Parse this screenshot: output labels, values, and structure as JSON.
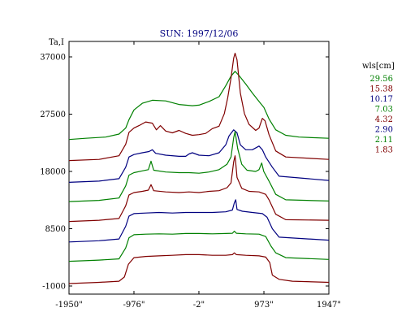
{
  "chart_data": {
    "type": "line",
    "title": "SUN: 1997/12/06",
    "ylabel": "Ta,I",
    "xlabel": "",
    "x_range": [
      -1950,
      1947
    ],
    "ylim": [
      -1000,
      37000
    ],
    "xticks": [
      {
        "value": -1950,
        "label": "-1950\""
      },
      {
        "value": -976,
        "label": "-976\""
      },
      {
        "value": -2,
        "label": "-2\""
      },
      {
        "value": 973,
        "label": "973\""
      },
      {
        "value": 1947,
        "label": "1947\""
      }
    ],
    "yticks": [
      {
        "value": 37000,
        "label": "37000"
      },
      {
        "value": 27500,
        "label": "27500"
      },
      {
        "value": 18000,
        "label": "18000"
      },
      {
        "value": 8500,
        "label": "8500"
      },
      {
        "value": -1000,
        "label": "-1000"
      }
    ],
    "legend": {
      "title": "wls[cm]",
      "placement": "right",
      "entries": [
        {
          "label": "29.56",
          "color": "#008000"
        },
        {
          "label": "15.38",
          "color": "#800000"
        },
        {
          "label": "10.17",
          "color": "#000080"
        },
        {
          "label": "7.03",
          "color": "#008000"
        },
        {
          "label": "4.32",
          "color": "#800000"
        },
        {
          "label": "2.90",
          "color": "#000080"
        },
        {
          "label": "2.11",
          "color": "#008000"
        },
        {
          "label": "1.83",
          "color": "#800000"
        }
      ]
    },
    "series": [
      {
        "name": "29.56",
        "color": "#008000",
        "points": [
          [
            -1950,
            23300
          ],
          [
            -1700,
            23500
          ],
          [
            -1400,
            23700
          ],
          [
            -1200,
            24200
          ],
          [
            -1100,
            25200
          ],
          [
            -1050,
            26600
          ],
          [
            -976,
            28200
          ],
          [
            -850,
            29300
          ],
          [
            -700,
            29800
          ],
          [
            -500,
            29700
          ],
          [
            -300,
            29100
          ],
          [
            -100,
            28900
          ],
          [
            0,
            29000
          ],
          [
            150,
            29600
          ],
          [
            300,
            30400
          ],
          [
            400,
            32200
          ],
          [
            480,
            33800
          ],
          [
            540,
            34600
          ],
          [
            600,
            33900
          ],
          [
            700,
            32500
          ],
          [
            800,
            31000
          ],
          [
            900,
            29600
          ],
          [
            973,
            28600
          ],
          [
            1050,
            26700
          ],
          [
            1150,
            24900
          ],
          [
            1300,
            24000
          ],
          [
            1500,
            23700
          ],
          [
            1947,
            23500
          ]
        ]
      },
      {
        "name": "15.38",
        "color": "#800000",
        "points": [
          [
            -1950,
            19800
          ],
          [
            -1500,
            20000
          ],
          [
            -1200,
            20600
          ],
          [
            -1100,
            22500
          ],
          [
            -1050,
            24500
          ],
          [
            -976,
            25200
          ],
          [
            -900,
            25600
          ],
          [
            -800,
            26200
          ],
          [
            -700,
            26000
          ],
          [
            -640,
            24900
          ],
          [
            -580,
            25600
          ],
          [
            -500,
            24700
          ],
          [
            -400,
            24400
          ],
          [
            -300,
            24800
          ],
          [
            -200,
            24300
          ],
          [
            -100,
            24000
          ],
          [
            0,
            24100
          ],
          [
            100,
            24300
          ],
          [
            200,
            25100
          ],
          [
            300,
            25500
          ],
          [
            380,
            27600
          ],
          [
            430,
            30200
          ],
          [
            480,
            33500
          ],
          [
            520,
            36800
          ],
          [
            540,
            37600
          ],
          [
            570,
            36500
          ],
          [
            620,
            31000
          ],
          [
            680,
            27600
          ],
          [
            750,
            25800
          ],
          [
            850,
            24800
          ],
          [
            900,
            25200
          ],
          [
            950,
            26800
          ],
          [
            990,
            26400
          ],
          [
            1050,
            24100
          ],
          [
            1150,
            21400
          ],
          [
            1300,
            20400
          ],
          [
            1947,
            20000
          ]
        ]
      },
      {
        "name": "10.17",
        "color": "#000080",
        "points": [
          [
            -1950,
            16200
          ],
          [
            -1500,
            16400
          ],
          [
            -1200,
            16800
          ],
          [
            -1100,
            18700
          ],
          [
            -1050,
            20400
          ],
          [
            -976,
            20800
          ],
          [
            -850,
            21100
          ],
          [
            -750,
            21300
          ],
          [
            -700,
            21600
          ],
          [
            -650,
            21000
          ],
          [
            -500,
            20700
          ],
          [
            -300,
            20500
          ],
          [
            -200,
            20500
          ],
          [
            -150,
            20900
          ],
          [
            -100,
            21100
          ],
          [
            0,
            20700
          ],
          [
            150,
            20600
          ],
          [
            300,
            21100
          ],
          [
            400,
            22400
          ],
          [
            450,
            23900
          ],
          [
            520,
            24900
          ],
          [
            570,
            24400
          ],
          [
            620,
            22400
          ],
          [
            700,
            21600
          ],
          [
            800,
            21600
          ],
          [
            900,
            22200
          ],
          [
            950,
            21600
          ],
          [
            1000,
            20400
          ],
          [
            1100,
            18700
          ],
          [
            1200,
            17200
          ],
          [
            1947,
            16500
          ]
        ]
      },
      {
        "name": "7.03",
        "color": "#008000",
        "points": [
          [
            -1950,
            13000
          ],
          [
            -1500,
            13200
          ],
          [
            -1200,
            13600
          ],
          [
            -1100,
            15600
          ],
          [
            -1050,
            17400
          ],
          [
            -976,
            17800
          ],
          [
            -850,
            18100
          ],
          [
            -760,
            18300
          ],
          [
            -720,
            19700
          ],
          [
            -680,
            18200
          ],
          [
            -500,
            17900
          ],
          [
            -300,
            17800
          ],
          [
            -150,
            17800
          ],
          [
            0,
            17700
          ],
          [
            150,
            17900
          ],
          [
            300,
            18300
          ],
          [
            420,
            19200
          ],
          [
            480,
            20400
          ],
          [
            520,
            23600
          ],
          [
            540,
            24600
          ],
          [
            580,
            21800
          ],
          [
            640,
            19200
          ],
          [
            720,
            18200
          ],
          [
            850,
            18000
          ],
          [
            900,
            18300
          ],
          [
            940,
            19400
          ],
          [
            970,
            18000
          ],
          [
            1050,
            16400
          ],
          [
            1150,
            14200
          ],
          [
            1300,
            13300
          ],
          [
            1947,
            13100
          ]
        ]
      },
      {
        "name": "4.32",
        "color": "#800000",
        "points": [
          [
            -1950,
            9700
          ],
          [
            -1500,
            9900
          ],
          [
            -1200,
            10200
          ],
          [
            -1100,
            12300
          ],
          [
            -1050,
            14100
          ],
          [
            -976,
            14500
          ],
          [
            -850,
            14700
          ],
          [
            -760,
            14900
          ],
          [
            -720,
            15800
          ],
          [
            -680,
            14800
          ],
          [
            -500,
            14600
          ],
          [
            -300,
            14500
          ],
          [
            -150,
            14600
          ],
          [
            0,
            14500
          ],
          [
            150,
            14700
          ],
          [
            300,
            14800
          ],
          [
            420,
            15300
          ],
          [
            480,
            16100
          ],
          [
            520,
            19600
          ],
          [
            540,
            20600
          ],
          [
            570,
            17000
          ],
          [
            640,
            15200
          ],
          [
            750,
            14700
          ],
          [
            900,
            14600
          ],
          [
            1000,
            14200
          ],
          [
            1050,
            13300
          ],
          [
            1150,
            10900
          ],
          [
            1300,
            10000
          ],
          [
            1947,
            9900
          ]
        ]
      },
      {
        "name": "2.90",
        "color": "#000080",
        "points": [
          [
            -1950,
            6300
          ],
          [
            -1500,
            6500
          ],
          [
            -1200,
            6800
          ],
          [
            -1100,
            8900
          ],
          [
            -1050,
            10600
          ],
          [
            -976,
            11000
          ],
          [
            -800,
            11100
          ],
          [
            -600,
            11200
          ],
          [
            -400,
            11100
          ],
          [
            -200,
            11200
          ],
          [
            0,
            11200
          ],
          [
            200,
            11200
          ],
          [
            400,
            11300
          ],
          [
            500,
            11600
          ],
          [
            530,
            12800
          ],
          [
            550,
            13300
          ],
          [
            570,
            11700
          ],
          [
            650,
            11400
          ],
          [
            800,
            11200
          ],
          [
            950,
            11000
          ],
          [
            1020,
            10400
          ],
          [
            1100,
            8500
          ],
          [
            1200,
            7100
          ],
          [
            1947,
            6600
          ]
        ]
      },
      {
        "name": "2.11",
        "color": "#008000",
        "points": [
          [
            -1950,
            3100
          ],
          [
            -1500,
            3300
          ],
          [
            -1200,
            3500
          ],
          [
            -1100,
            5300
          ],
          [
            -1050,
            7000
          ],
          [
            -976,
            7500
          ],
          [
            -800,
            7600
          ],
          [
            -600,
            7650
          ],
          [
            -400,
            7600
          ],
          [
            -200,
            7700
          ],
          [
            0,
            7700
          ],
          [
            200,
            7650
          ],
          [
            400,
            7700
          ],
          [
            500,
            7750
          ],
          [
            530,
            8100
          ],
          [
            560,
            7750
          ],
          [
            700,
            7650
          ],
          [
            900,
            7600
          ],
          [
            1000,
            7200
          ],
          [
            1080,
            5600
          ],
          [
            1150,
            4500
          ],
          [
            1300,
            3700
          ],
          [
            1947,
            3400
          ]
        ]
      },
      {
        "name": "1.83",
        "color": "#800000",
        "points": [
          [
            -1950,
            -600
          ],
          [
            -1500,
            -400
          ],
          [
            -1200,
            -200
          ],
          [
            -1120,
            500
          ],
          [
            -1060,
            2600
          ],
          [
            -976,
            3700
          ],
          [
            -800,
            3900
          ],
          [
            -600,
            4000
          ],
          [
            -400,
            4100
          ],
          [
            -200,
            4200
          ],
          [
            0,
            4200
          ],
          [
            200,
            4100
          ],
          [
            400,
            4100
          ],
          [
            500,
            4200
          ],
          [
            530,
            4500
          ],
          [
            560,
            4200
          ],
          [
            700,
            4100
          ],
          [
            900,
            4000
          ],
          [
            1000,
            3800
          ],
          [
            1060,
            2900
          ],
          [
            1100,
            800
          ],
          [
            1200,
            100
          ],
          [
            1400,
            -200
          ],
          [
            1947,
            -400
          ]
        ]
      }
    ]
  }
}
